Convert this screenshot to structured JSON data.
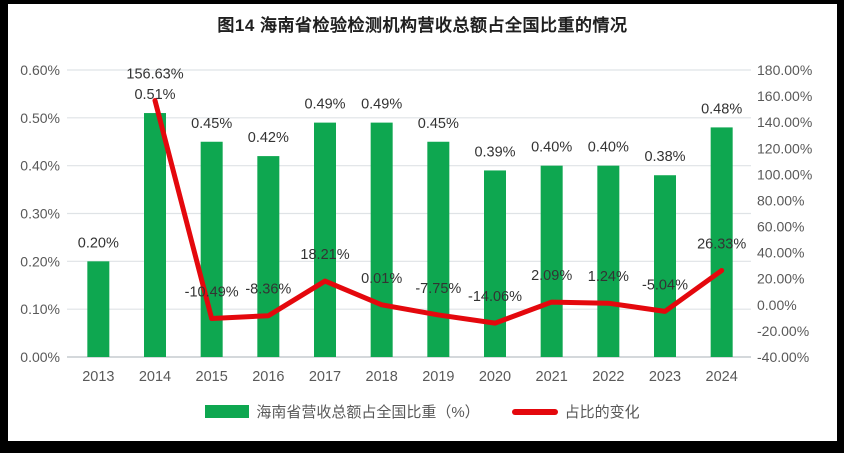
{
  "title": "图14 海南省检验检测机构营收总额占全国比重的情况",
  "colors": {
    "frame": "#000000",
    "background": "#ffffff",
    "bar": "#0ea750",
    "line": "#e4080d",
    "grid": "#dfe3e6",
    "axis_line": "#c6cbcf",
    "axis_text": "#595959",
    "label_text": "#333333",
    "title_text": "#1f1f1f"
  },
  "chart_data": {
    "type": "bar+line combo",
    "title": "图14 海南省检验检测机构营收总额占全国比重的情况",
    "categories": [
      "2013",
      "2014",
      "2015",
      "2016",
      "2017",
      "2018",
      "2019",
      "2020",
      "2021",
      "2022",
      "2023",
      "2024"
    ],
    "series": [
      {
        "name": "海南省营收总额占全国比重（%）",
        "type": "bar",
        "axis": "left",
        "values": [
          0.2,
          0.51,
          0.45,
          0.42,
          0.49,
          0.49,
          0.45,
          0.39,
          0.4,
          0.4,
          0.38,
          0.48
        ],
        "labels": [
          "0.20%",
          "0.51%",
          "0.45%",
          "0.42%",
          "0.49%",
          "0.49%",
          "0.45%",
          "0.39%",
          "0.40%",
          "0.40%",
          "0.38%",
          "0.48%"
        ]
      },
      {
        "name": "占比的变化",
        "type": "line",
        "axis": "right",
        "values": [
          null,
          156.63,
          -10.49,
          -8.36,
          18.21,
          0.01,
          -7.75,
          -14.06,
          2.09,
          1.24,
          -5.04,
          26.33
        ],
        "labels": [
          null,
          "156.63%",
          "-10.49%",
          "-8.36%",
          "18.21%",
          "0.01%",
          "-7.75%",
          "-14.06%",
          "2.09%",
          "1.24%",
          "-5.04%",
          "26.33%"
        ]
      }
    ],
    "left_axis": {
      "min": 0,
      "max": 0.6,
      "step": 0.1,
      "tick_labels": [
        "0.00%",
        "0.10%",
        "0.20%",
        "0.30%",
        "0.40%",
        "0.50%",
        "0.60%"
      ]
    },
    "right_axis": {
      "min": -40,
      "max": 180,
      "step": 20,
      "tick_labels": [
        "-40.00%",
        "-20.00%",
        "0.00%",
        "20.00%",
        "40.00%",
        "60.00%",
        "80.00%",
        "100.00%",
        "120.00%",
        "140.00%",
        "160.00%",
        "180.00%"
      ]
    },
    "grid": true,
    "legend_position": "bottom"
  },
  "legend": {
    "items": [
      {
        "label": "海南省营收总额占全国比重（%）",
        "swatch": "bar"
      },
      {
        "label": "占比的变化",
        "swatch": "line"
      }
    ]
  }
}
